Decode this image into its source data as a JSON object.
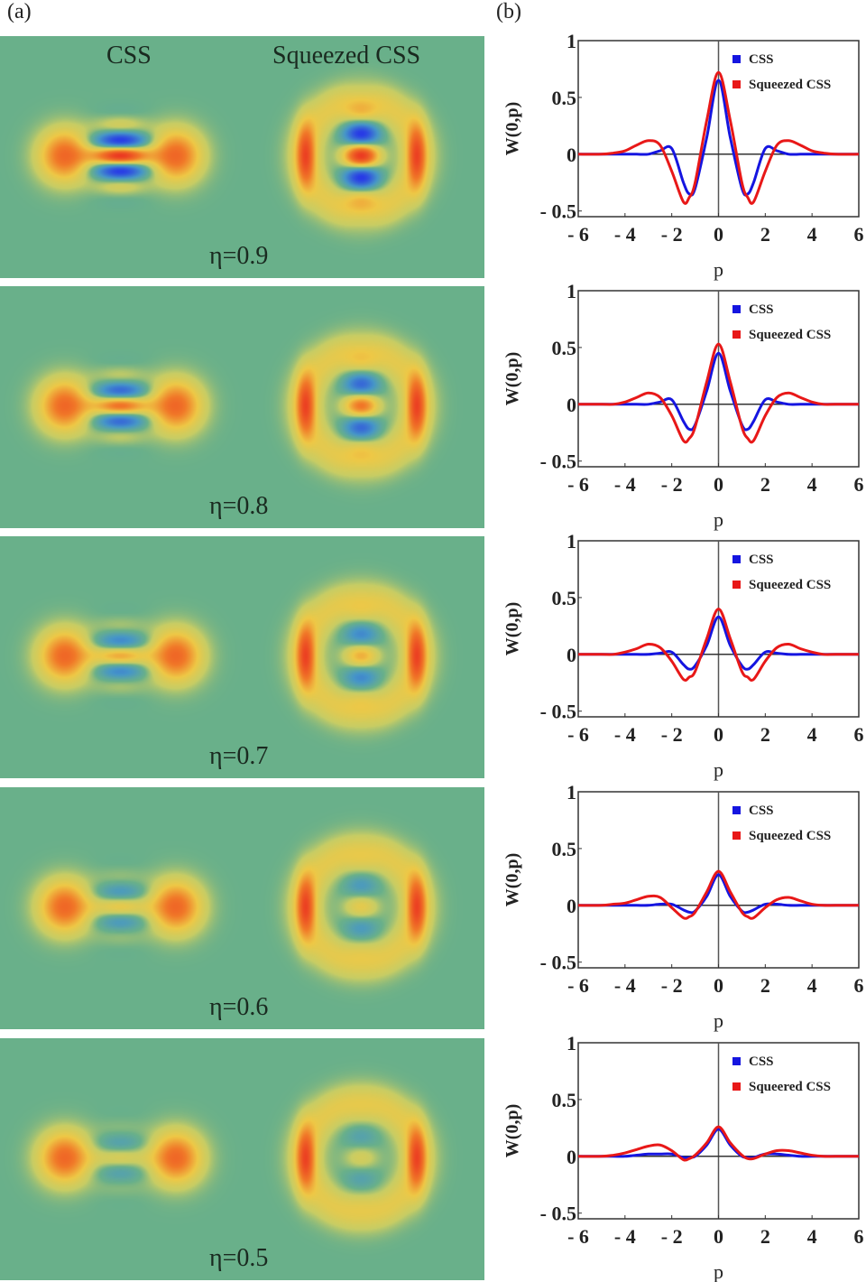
{
  "panel_labels": {
    "a": "(a)",
    "b": "(b)"
  },
  "heatmap_columns": [
    "CSS",
    "Squeezed CSS"
  ],
  "colors": {
    "background": "#69b08a",
    "css": "#1515e0",
    "squeezed": "#e81818",
    "negative": "#3a2fd0",
    "positive": "#e82020"
  },
  "chart_data": [
    {
      "type": "line",
      "eta_label": "η=0.9",
      "eta": 0.9,
      "xlabel": "p",
      "ylabel": "W(0,p)",
      "xlim": [
        -6,
        6
      ],
      "ylim": [
        -0.55,
        1
      ],
      "xticks": [
        "- 6",
        "- 4",
        "- 2",
        "0",
        "2",
        "4",
        "6"
      ],
      "yticks": [
        "1",
        "0.5",
        "0",
        "- 0.5"
      ],
      "legend_position": "top-right",
      "x": [
        -6,
        -5,
        -4.5,
        -4,
        -3.5,
        -3,
        -2.5,
        -2,
        -1.5,
        -1.25,
        -1,
        -0.5,
        0,
        0.5,
        1,
        1.25,
        1.5,
        2,
        2.5,
        3,
        3.5,
        4,
        4.5,
        5,
        6
      ],
      "series": [
        {
          "name": "CSS",
          "values": [
            0,
            0,
            0,
            0,
            0,
            0,
            0.03,
            0.05,
            -0.25,
            -0.35,
            -0.3,
            0.15,
            0.65,
            0.15,
            -0.3,
            -0.35,
            -0.25,
            0.05,
            0.03,
            0,
            0,
            0,
            0,
            0,
            0
          ]
        },
        {
          "name": "Squeezed CSS",
          "values": [
            0,
            0,
            0.01,
            0.03,
            0.08,
            0.12,
            0.08,
            -0.15,
            -0.42,
            -0.38,
            -0.25,
            0.3,
            0.72,
            0.3,
            -0.25,
            -0.38,
            -0.42,
            -0.15,
            0.08,
            0.12,
            0.08,
            0.03,
            0.01,
            0,
            0
          ]
        }
      ]
    },
    {
      "type": "line",
      "eta_label": "η=0.8",
      "eta": 0.8,
      "xlabel": "p",
      "ylabel": "W(0,p)",
      "xlim": [
        -6,
        6
      ],
      "ylim": [
        -0.55,
        1
      ],
      "xticks": [
        "- 6",
        "- 4",
        "- 2",
        "0",
        "2",
        "4",
        "6"
      ],
      "yticks": [
        "1",
        "0.5",
        "0",
        "- 0.5"
      ],
      "legend_position": "top-right",
      "x": [
        -6,
        -5,
        -4.5,
        -4,
        -3.5,
        -3,
        -2.5,
        -2,
        -1.5,
        -1.25,
        -1,
        -0.5,
        0,
        0.5,
        1,
        1.25,
        1.5,
        2,
        2.5,
        3,
        3.5,
        4,
        4.5,
        5,
        6
      ],
      "series": [
        {
          "name": "CSS",
          "values": [
            0,
            0,
            0,
            0,
            0,
            0,
            0.02,
            0.04,
            -0.15,
            -0.22,
            -0.18,
            0.12,
            0.45,
            0.12,
            -0.18,
            -0.22,
            -0.15,
            0.04,
            0.02,
            0,
            0,
            0,
            0,
            0,
            0
          ]
        },
        {
          "name": "Squeezed CSS",
          "values": [
            0,
            0,
            0,
            0.02,
            0.06,
            0.1,
            0.06,
            -0.1,
            -0.32,
            -0.3,
            -0.2,
            0.2,
            0.53,
            0.2,
            -0.2,
            -0.3,
            -0.32,
            -0.1,
            0.06,
            0.1,
            0.06,
            0.02,
            0,
            0,
            0
          ]
        }
      ]
    },
    {
      "type": "line",
      "eta_label": "η=0.7",
      "eta": 0.7,
      "xlabel": "p",
      "ylabel": "W(0,p)",
      "xlim": [
        -6,
        6
      ],
      "ylim": [
        -0.55,
        1
      ],
      "xticks": [
        "- 6",
        "- 4",
        "- 2",
        "0",
        "2",
        "4",
        "6"
      ],
      "yticks": [
        "1",
        "0.5",
        "0",
        "- 0.5"
      ],
      "legend_position": "top-right",
      "x": [
        -6,
        -5,
        -4.5,
        -4,
        -3.5,
        -3,
        -2.5,
        -2,
        -1.5,
        -1.25,
        -1,
        -0.5,
        0,
        0.5,
        1,
        1.25,
        1.5,
        2,
        2.5,
        3,
        3.5,
        4,
        4.5,
        5,
        6
      ],
      "series": [
        {
          "name": "CSS",
          "values": [
            0,
            0,
            0,
            0,
            0,
            0,
            0.01,
            0.02,
            -0.09,
            -0.13,
            -0.1,
            0.08,
            0.33,
            0.08,
            -0.1,
            -0.13,
            -0.09,
            0.02,
            0.01,
            0,
            0,
            0,
            0,
            0,
            0
          ]
        },
        {
          "name": "Squeezed CSS",
          "values": [
            0,
            0,
            0,
            0.02,
            0.05,
            0.09,
            0.06,
            -0.06,
            -0.22,
            -0.2,
            -0.15,
            0.14,
            0.4,
            0.14,
            -0.15,
            -0.2,
            -0.22,
            -0.06,
            0.06,
            0.09,
            0.05,
            0.02,
            0,
            0,
            0
          ]
        }
      ]
    },
    {
      "type": "line",
      "eta_label": "η=0.6",
      "eta": 0.6,
      "xlabel": "p",
      "ylabel": "W(0,p)",
      "xlim": [
        -6,
        6
      ],
      "ylim": [
        -0.55,
        1
      ],
      "xticks": [
        "- 6",
        "- 4",
        "- 2",
        "0",
        "2",
        "4",
        "6"
      ],
      "yticks": [
        "1",
        "0.5",
        "0",
        "- 0.5"
      ],
      "legend_position": "top-right",
      "x": [
        -6,
        -5,
        -4.5,
        -4,
        -3.5,
        -3,
        -2.5,
        -2,
        -1.5,
        -1.25,
        -1,
        -0.5,
        0,
        0.5,
        1,
        1.25,
        1.5,
        2,
        2.5,
        3,
        3.5,
        4,
        4.5,
        5,
        6
      ],
      "series": [
        {
          "name": "CSS",
          "values": [
            0,
            0,
            0,
            0,
            0,
            0,
            0.01,
            0.01,
            -0.04,
            -0.06,
            -0.05,
            0.08,
            0.27,
            0.08,
            -0.05,
            -0.06,
            -0.04,
            0.01,
            0.01,
            0,
            0,
            0,
            0,
            0,
            0
          ]
        },
        {
          "name": "Squeezed CSS",
          "values": [
            0,
            0,
            0.01,
            0.02,
            0.05,
            0.08,
            0.07,
            -0.02,
            -0.11,
            -0.1,
            -0.06,
            0.12,
            0.3,
            0.12,
            -0.06,
            -0.1,
            -0.11,
            -0.02,
            0.05,
            0.07,
            0.04,
            0.01,
            0,
            0,
            0
          ]
        }
      ]
    },
    {
      "type": "line",
      "eta_label": "η=0.5",
      "eta": 0.5,
      "xlabel": "p",
      "ylabel": "W(0,p)",
      "xlim": [
        -6,
        6
      ],
      "ylim": [
        -0.55,
        1
      ],
      "xticks": [
        "- 6",
        "- 4",
        "- 2",
        "0",
        "2",
        "4",
        "6"
      ],
      "yticks": [
        "1",
        "0.5",
        "0",
        "- 0.5"
      ],
      "legend_position": "top-right",
      "x": [
        -6,
        -5,
        -4.5,
        -4,
        -3.5,
        -3,
        -2.5,
        -2,
        -1.5,
        -1.25,
        -1,
        -0.5,
        0,
        0.5,
        1,
        1.25,
        1.5,
        2,
        2.5,
        3,
        3.5,
        4,
        4.5,
        5,
        6
      ],
      "series": [
        {
          "name": "CSS",
          "values": [
            0,
            0,
            0,
            0,
            0.01,
            0.02,
            0.02,
            0.02,
            -0.01,
            -0.01,
            0,
            0.1,
            0.24,
            0.1,
            0,
            -0.01,
            -0.01,
            0.02,
            0.02,
            0.01,
            0,
            0,
            0,
            0,
            0
          ]
        },
        {
          "name": "Squeered CSS",
          "values": [
            0,
            0,
            0.01,
            0.03,
            0.06,
            0.09,
            0.1,
            0.05,
            -0.03,
            -0.02,
            0.01,
            0.12,
            0.26,
            0.12,
            0.01,
            -0.02,
            -0.02,
            0.02,
            0.05,
            0.05,
            0.03,
            0.01,
            0,
            0,
            0
          ]
        }
      ]
    }
  ]
}
